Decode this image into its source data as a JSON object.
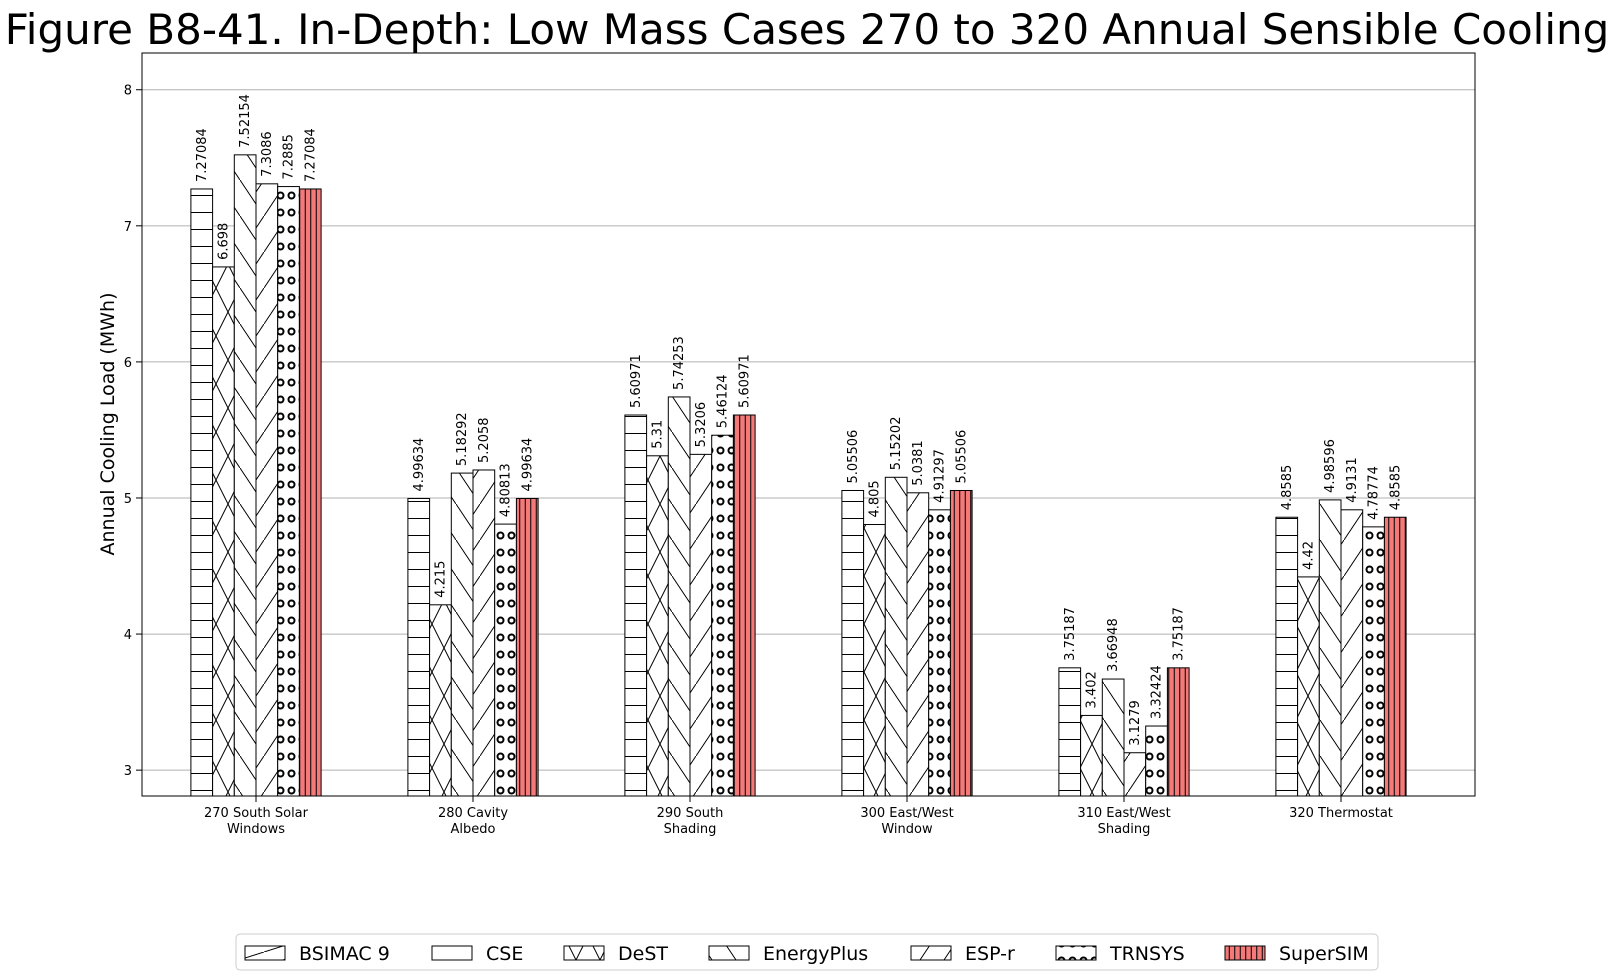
{
  "chart_data": {
    "type": "bar",
    "title": "Figure B8-41. In-Depth: Low Mass Cases 270 to 320 Annual Sensible Cooling",
    "xlabel": "",
    "ylabel": "Annual Cooling Load (MWh)",
    "ylim": [
      2.81,
      8.27
    ],
    "yticks": [
      3,
      4,
      5,
      6,
      7,
      8
    ],
    "grid": "y",
    "legend_position": "bottom",
    "categories": [
      [
        "270 South Solar",
        "Windows"
      ],
      [
        "280 Cavity",
        "Albedo"
      ],
      [
        "290 South",
        "Shading"
      ],
      [
        "300 East/West",
        "Window"
      ],
      [
        "310 East/West",
        "Shading"
      ],
      [
        "320 Thermostat"
      ]
    ],
    "series": [
      {
        "name": "BSIMAC 9",
        "values": [
          null,
          null,
          null,
          null,
          null,
          null
        ],
        "labels": [
          null,
          null,
          null,
          null,
          null,
          null
        ],
        "hatch": "diag-box",
        "color": "#ffffff"
      },
      {
        "name": "CSE",
        "values": [
          7.27084,
          4.99634,
          5.60971,
          5.05506,
          3.75187,
          4.8585
        ],
        "labels": [
          "7.27084",
          "4.99634",
          "5.60971",
          "5.05506",
          "3.75187",
          "4.8585"
        ],
        "hatch": "horizontal",
        "color": "#ffffff"
      },
      {
        "name": "DeST",
        "values": [
          6.698,
          4.215,
          5.31,
          4.805,
          3.402,
          4.42
        ],
        "labels": [
          "6.698",
          "4.215",
          "5.31",
          "4.805",
          "3.402",
          "4.42"
        ],
        "hatch": "cross",
        "color": "#ffffff"
      },
      {
        "name": "EnergyPlus",
        "values": [
          7.52154,
          5.18292,
          5.74253,
          5.15202,
          3.66948,
          4.98596
        ],
        "labels": [
          "7.52154",
          "5.18292",
          "5.74253",
          "5.15202",
          "3.66948",
          "4.98596"
        ],
        "hatch": "backslash",
        "color": "#ffffff"
      },
      {
        "name": "ESP-r",
        "values": [
          7.3086,
          5.2058,
          5.3206,
          5.0381,
          3.1279,
          4.9131
        ],
        "labels": [
          "7.3086",
          "5.2058",
          "5.3206",
          "5.0381",
          "3.1279",
          "4.9131"
        ],
        "hatch": "slash",
        "color": "#ffffff"
      },
      {
        "name": "TRNSYS",
        "values": [
          7.2885,
          4.80813,
          5.46124,
          4.91297,
          3.32424,
          4.78774
        ],
        "labels": [
          "7.2885",
          "4.80813",
          "5.46124",
          "4.91297",
          "3.32424",
          "4.78774"
        ],
        "hatch": "circles",
        "color": "#ffffff"
      },
      {
        "name": "SuperSIM",
        "values": [
          7.27084,
          4.99634,
          5.60971,
          5.05506,
          3.75187,
          4.8585
        ],
        "labels": [
          "7.27084",
          "4.99634",
          "5.60971",
          "5.05506",
          "3.75187",
          "4.8585"
        ],
        "hatch": "vertical",
        "color": "#f47a7a"
      }
    ]
  }
}
